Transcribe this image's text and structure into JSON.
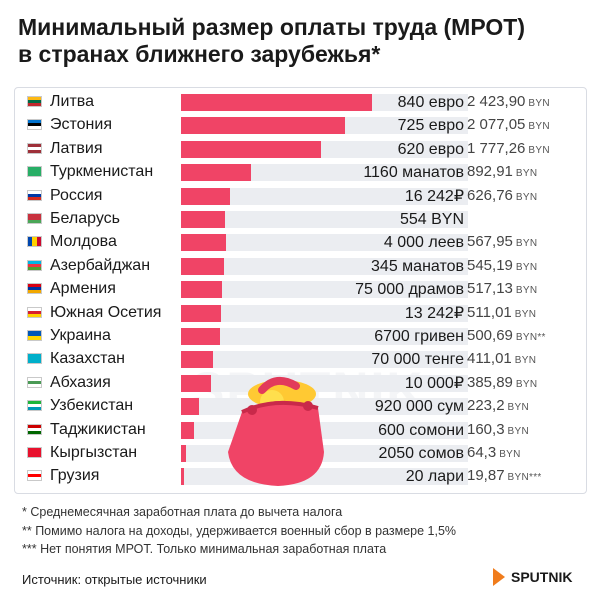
{
  "title": {
    "line1": "Минимальный размер оплаты труда (МРОТ)",
    "line2": "в странах ближнего зарубежья*"
  },
  "chart_data": {
    "type": "bar",
    "orientation": "horizontal",
    "value_unit": "BYN",
    "categories": [
      "Литва",
      "Эстония",
      "Латвия",
      "Туркменистан",
      "Россия",
      "Беларусь",
      "Молдова",
      "Азербайджан",
      "Армения",
      "Южная Осетия",
      "Украина",
      "Казахстан",
      "Абхазия",
      "Узбекистан",
      "Таджикистан",
      "Кыргызстан",
      "Грузия"
    ],
    "values": [
      2423.9,
      2077.05,
      1777.26,
      892.91,
      626.76,
      554,
      567.95,
      545.19,
      517.13,
      511.01,
      500.69,
      411.01,
      385.89,
      223.2,
      160.3,
      64.3,
      19.87
    ],
    "local_labels": [
      "840 евро",
      "725 евро",
      "620 евро",
      "1160 манатов",
      "16 242₽",
      "554 BYN",
      "4 000 леев",
      "345 манатов",
      "75 000 драмов",
      "13 242₽",
      "6700 гривен",
      "70 000 тенге",
      "10 000₽",
      "920 000 сум",
      "600 сомони",
      "2050 сомов",
      "20 лари"
    ],
    "byn_labels": [
      "2 423,90",
      "2 077,05",
      "1 777,26",
      "892,91",
      "626,76",
      "",
      "567,95",
      "545,19",
      "517,13",
      "511,01",
      "500,69",
      "411,01",
      "385,89",
      "223,2",
      "160,3",
      "64,3",
      "19,87"
    ],
    "byn_suffix": [
      "",
      "",
      "",
      "",
      "",
      "",
      "",
      "",
      "",
      "",
      "**",
      "",
      "",
      "",
      "",
      "",
      "***"
    ],
    "currency_label": "BYN",
    "xlim": [
      0,
      2423.9
    ]
  },
  "flags": [
    {
      "dir": "h",
      "colors": [
        "#fdb913",
        "#006a44",
        "#c1272d"
      ]
    },
    {
      "dir": "h",
      "colors": [
        "#0072ce",
        "#000000",
        "#ffffff"
      ]
    },
    {
      "dir": "h",
      "colors": [
        "#9e3039",
        "#ffffff",
        "#9e3039"
      ]
    },
    {
      "dir": "h",
      "colors": [
        "#28ae66",
        "#28ae66",
        "#28ae66"
      ]
    },
    {
      "dir": "h",
      "colors": [
        "#ffffff",
        "#0039a6",
        "#d52b1e"
      ]
    },
    {
      "dir": "h",
      "colors": [
        "#c8313e",
        "#c8313e",
        "#4aa657"
      ]
    },
    {
      "dir": "v",
      "colors": [
        "#0046ae",
        "#ffd200",
        "#cc092f"
      ]
    },
    {
      "dir": "h",
      "colors": [
        "#00b5e2",
        "#ef3340",
        "#509e2f"
      ]
    },
    {
      "dir": "h",
      "colors": [
        "#d90012",
        "#0033a0",
        "#f2a800"
      ]
    },
    {
      "dir": "h",
      "colors": [
        "#ffffff",
        "#d8202c",
        "#ffd200"
      ]
    },
    {
      "dir": "h",
      "colors": [
        "#0057b7",
        "#ffd700"
      ]
    },
    {
      "dir": "h",
      "colors": [
        "#00afca",
        "#00afca",
        "#00afca"
      ]
    },
    {
      "dir": "h",
      "colors": [
        "#ffffff",
        "#4a9a55",
        "#ffffff"
      ]
    },
    {
      "dir": "h",
      "colors": [
        "#1eb53a",
        "#ffffff",
        "#0099b5"
      ]
    },
    {
      "dir": "h",
      "colors": [
        "#cc0000",
        "#ffffff",
        "#006600"
      ]
    },
    {
      "dir": "h",
      "colors": [
        "#e8112d",
        "#e8112d",
        "#e8112d"
      ]
    },
    {
      "dir": "h",
      "colors": [
        "#ffffff",
        "#ff0000",
        "#ffffff"
      ]
    }
  ],
  "colors": {
    "bar": "#f04466",
    "track": "#ebedf1",
    "purse": "#f04466"
  },
  "watermark": "SPUTNIK",
  "notes": [
    "* Среднемесячная заработная плата до вычета налога",
    "** Помимо налога на доходы, удерживается военный сбор в размере 1,5%",
    "*** Нет понятия МРОТ. Только минимальная заработная плата"
  ],
  "source": "Источник: открытые источники",
  "logo": "SPUTNIK"
}
